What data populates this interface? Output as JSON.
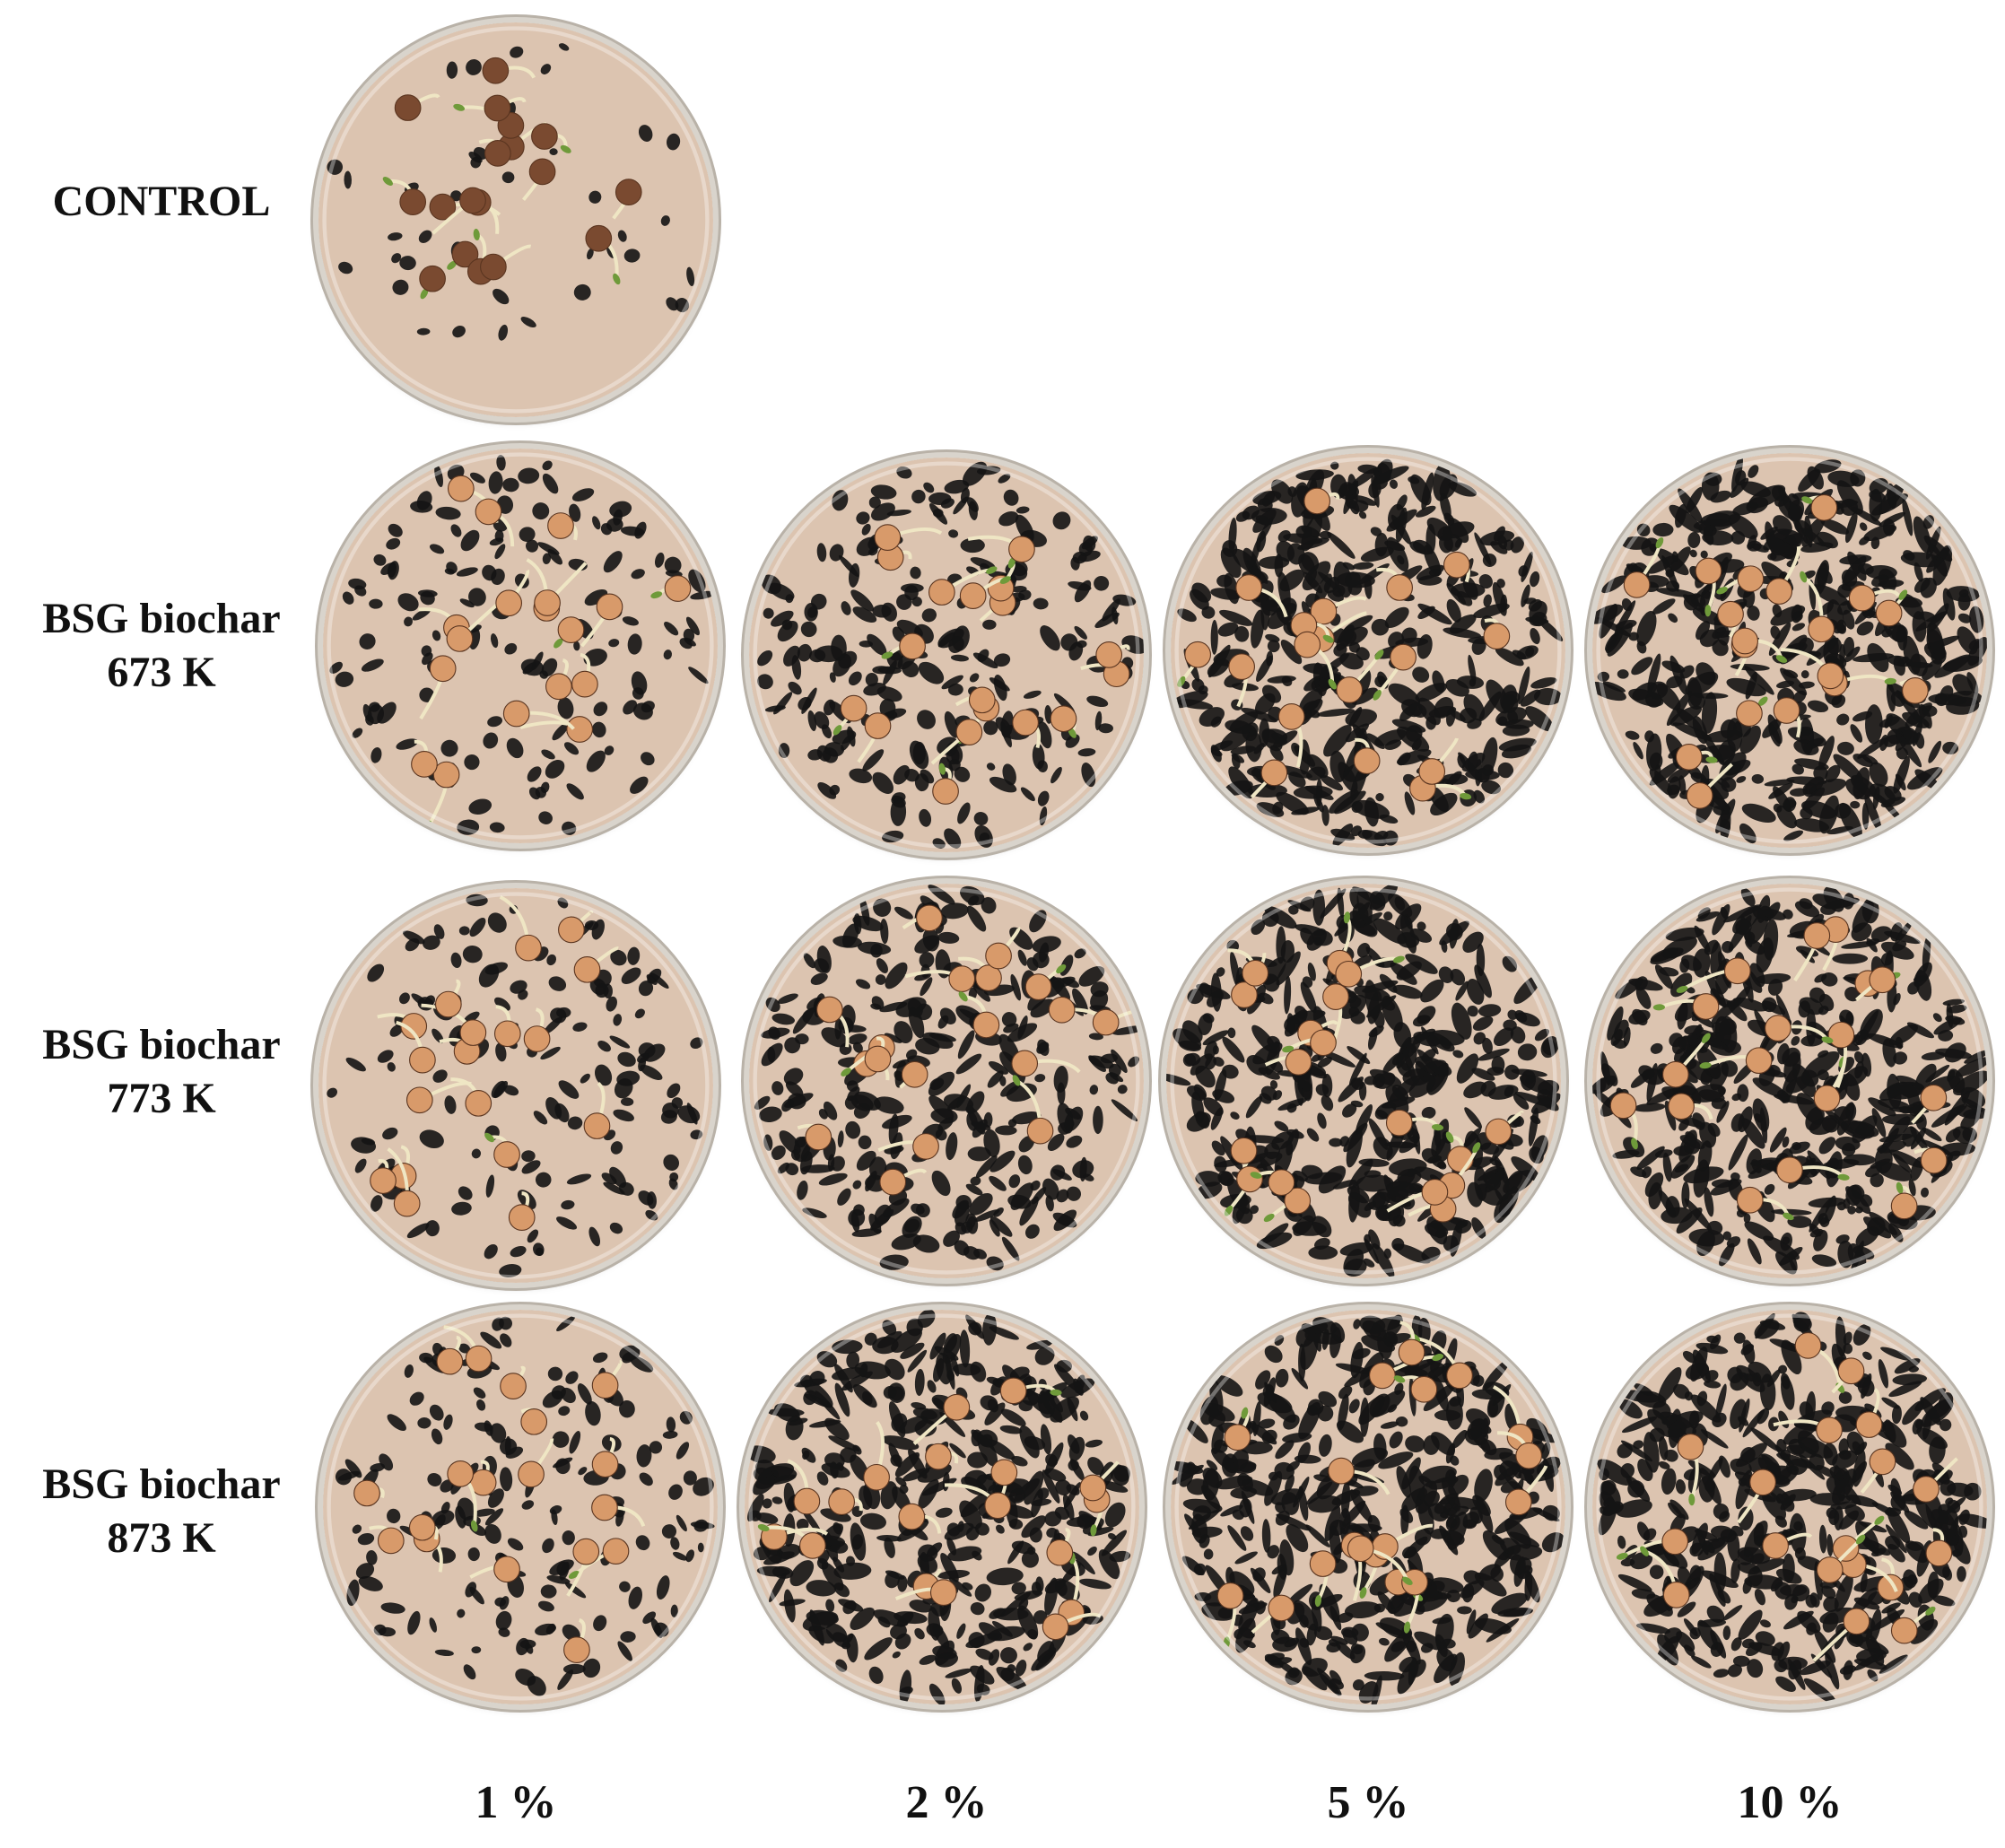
{
  "row_labels": [
    {
      "line1": "CONTROL",
      "line2": ""
    },
    {
      "line1": "BSG biochar",
      "line2": "673 K"
    },
    {
      "line1": "BSG biochar",
      "line2": "773 K"
    },
    {
      "line1": "BSG biochar",
      "line2": "873 K"
    }
  ],
  "column_labels": [
    "1 %",
    "2 %",
    "5 %",
    "10 %"
  ],
  "colors": {
    "agar": "#dcc4b0",
    "biochar": "#141414",
    "seed_control": "#7a4a30",
    "seed": "#d89a6a",
    "sprout": "#efe6c4",
    "leaf": "#6f9a3a"
  },
  "dishes": [
    {
      "row": "CONTROL",
      "dose": "",
      "biochar_fraction": 0.0
    },
    {
      "row": "673 K",
      "dose": "1 %",
      "biochar_fraction": 0.25
    },
    {
      "row": "673 K",
      "dose": "2 %",
      "biochar_fraction": 0.45
    },
    {
      "row": "673 K",
      "dose": "5 %",
      "biochar_fraction": 0.85
    },
    {
      "row": "673 K",
      "dose": "10 %",
      "biochar_fraction": 0.95
    },
    {
      "row": "773 K",
      "dose": "1 %",
      "biochar_fraction": 0.25
    },
    {
      "row": "773 K",
      "dose": "2 %",
      "biochar_fraction": 0.6
    },
    {
      "row": "773 K",
      "dose": "5 %",
      "biochar_fraction": 0.9
    },
    {
      "row": "773 K",
      "dose": "10 %",
      "biochar_fraction": 0.95
    },
    {
      "row": "873 K",
      "dose": "1 %",
      "biochar_fraction": 0.3
    },
    {
      "row": "873 K",
      "dose": "2 %",
      "biochar_fraction": 0.8
    },
    {
      "row": "873 K",
      "dose": "5 %",
      "biochar_fraction": 0.9
    },
    {
      "row": "873 K",
      "dose": "10 %",
      "biochar_fraction": 0.92
    }
  ]
}
